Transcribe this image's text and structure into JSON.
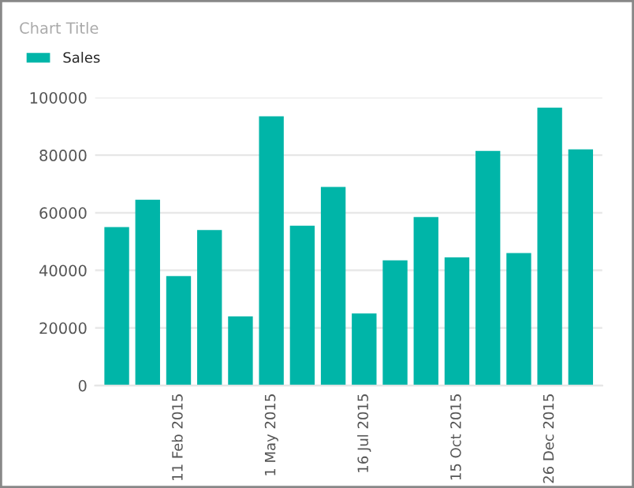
{
  "chart_data": {
    "type": "bar",
    "title": "Chart Title",
    "categories": [
      null,
      null,
      "11 Feb 2015",
      null,
      null,
      "1 May 2015",
      null,
      null,
      "16 Jul 2015",
      null,
      null,
      "15 Oct 2015",
      null,
      null,
      "26 Dec 2015",
      null
    ],
    "series": [
      {
        "name": "Sales",
        "color": "#00b5a8",
        "values": [
          55000,
          64500,
          38000,
          54000,
          24000,
          93500,
          55500,
          69000,
          25000,
          43500,
          58500,
          44500,
          81500,
          46000,
          96500,
          82000
        ]
      }
    ],
    "ylim": [
      0,
      100000
    ],
    "yticks": [
      0,
      20000,
      40000,
      60000,
      80000,
      100000
    ],
    "grid": "y",
    "legend": "top left"
  }
}
